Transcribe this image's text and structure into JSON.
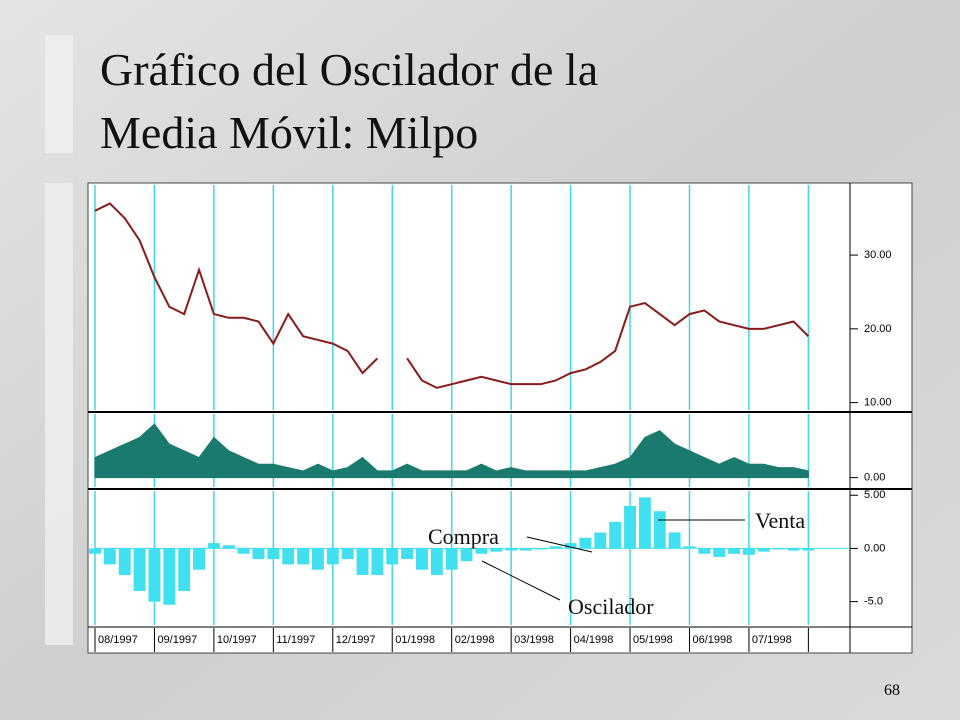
{
  "slide": {
    "title_lines": [
      "Gráfico del Oscilador de la",
      "Media Móvil: Milpo"
    ],
    "page_number": "68"
  },
  "chart_data": [
    {
      "type": "line",
      "color": "#8b1a1a",
      "grid": true,
      "x": [
        0,
        0.25,
        0.5,
        0.75,
        1,
        1.25,
        1.5,
        1.75,
        2,
        2.25,
        2.5,
        2.75,
        3,
        3.25,
        3.5,
        3.75,
        4,
        4.25,
        4.5,
        4.75,
        5,
        5.25,
        5.5,
        5.75,
        6,
        6.25,
        6.5,
        6.75,
        7,
        7.25,
        7.5,
        7.75,
        8,
        8.25,
        8.5,
        8.75,
        9,
        9.25,
        9.5,
        9.75,
        10,
        10.25,
        10.5,
        10.75,
        11,
        11.25,
        11.5,
        11.75,
        12
      ],
      "values": [
        36,
        37,
        35,
        32,
        27,
        23,
        22,
        28,
        22,
        21.5,
        21.5,
        21,
        18,
        22,
        19,
        18.5,
        18,
        17,
        14,
        16,
        null,
        16,
        13,
        12,
        12.5,
        13,
        13.5,
        13,
        12.5,
        12.5,
        12.5,
        13,
        14,
        14.5,
        15.5,
        17,
        23,
        23.5,
        22,
        20.5,
        22,
        22.5,
        21,
        20.5,
        20,
        20,
        20.5,
        21,
        19
      ],
      "xlim": [
        0,
        12.7
      ],
      "xticks": [
        0,
        1,
        2,
        3,
        4,
        5,
        6,
        7,
        8,
        9,
        10,
        11,
        12
      ],
      "ylim": [
        9,
        39.5
      ],
      "yticks": [
        {
          "value": 10,
          "label": "10.00"
        },
        {
          "value": 20,
          "label": "20.00"
        },
        {
          "value": 30,
          "label": "30.00"
        }
      ]
    },
    {
      "type": "area",
      "color": "#1a7a6e",
      "grid": true,
      "x": [
        0,
        0.25,
        0.5,
        0.75,
        1,
        1.25,
        1.5,
        1.75,
        2,
        2.25,
        2.5,
        2.75,
        3,
        3.25,
        3.5,
        3.75,
        4,
        4.25,
        4.5,
        4.75,
        5,
        5.25,
        5.5,
        5.75,
        6,
        6.25,
        6.5,
        6.75,
        7,
        7.25,
        7.5,
        7.75,
        8,
        8.25,
        8.5,
        8.75,
        9,
        9.25,
        9.5,
        9.75,
        10,
        10.25,
        10.5,
        10.75,
        11,
        11.25,
        11.5,
        11.75,
        12
      ],
      "values": [
        3,
        4,
        5,
        6,
        8,
        5,
        4,
        3,
        6,
        4,
        3,
        2,
        2,
        1.5,
        1,
        2,
        1,
        1.5,
        3,
        1,
        1,
        2,
        1,
        1,
        1,
        1,
        2,
        1,
        1.5,
        1,
        1,
        1,
        1,
        1,
        1.5,
        2,
        3,
        6,
        7,
        5,
        4,
        3,
        2,
        3,
        2,
        2,
        1.5,
        1.5,
        1
      ],
      "xlim": [
        0,
        12.7
      ],
      "xticks": [
        0,
        1,
        2,
        3,
        4,
        5,
        6,
        7,
        8,
        9,
        10,
        11,
        12
      ],
      "ylim": [
        -1.4,
        9.5
      ],
      "yticks": [
        {
          "value": 0,
          "label": "0.00"
        }
      ]
    },
    {
      "type": "bar",
      "color": "#40e0f0",
      "grid": true,
      "x": [
        0,
        0.25,
        0.5,
        0.75,
        1,
        1.25,
        1.5,
        1.75,
        2,
        2.25,
        2.5,
        2.75,
        3,
        3.25,
        3.5,
        3.75,
        4,
        4.25,
        4.5,
        4.75,
        5,
        5.25,
        5.5,
        5.75,
        6,
        6.25,
        6.5,
        6.75,
        7,
        7.25,
        7.5,
        7.75,
        8,
        8.25,
        8.5,
        8.75,
        9,
        9.25,
        9.5,
        9.75,
        10,
        10.25,
        10.5,
        10.75,
        11,
        11.25,
        11.5,
        11.75,
        12
      ],
      "values": [
        -0.5,
        -1.5,
        -2.5,
        -4,
        -5,
        -5.3,
        -4,
        -2,
        0.5,
        0.3,
        -0.5,
        -1,
        -1,
        -1.5,
        -1.5,
        -2,
        -1.5,
        -1,
        -2.5,
        -2.5,
        -1.5,
        -1,
        -2,
        -2.5,
        -2,
        -1.2,
        -0.5,
        -0.3,
        -0.2,
        -0.2,
        -0.1,
        0.2,
        0.5,
        1,
        1.5,
        2.5,
        4,
        4.8,
        3.5,
        1.5,
        0.2,
        -0.5,
        -0.8,
        -0.5,
        -0.6,
        -0.3,
        -0.1,
        -0.2,
        -0.2
      ],
      "xlim": [
        0,
        12.7
      ],
      "xticks": [
        {
          "value": 0,
          "label": "08/1997"
        },
        {
          "value": 1,
          "label": "09/1997"
        },
        {
          "value": 2,
          "label": "10/1997"
        },
        {
          "value": 3,
          "label": "11/1997"
        },
        {
          "value": 4,
          "label": "12/1997"
        },
        {
          "value": 5,
          "label": "01/1998"
        },
        {
          "value": 6,
          "label": "02/1998"
        },
        {
          "value": 7,
          "label": "03/1998"
        },
        {
          "value": 8,
          "label": "04/1998"
        },
        {
          "value": 9,
          "label": "05/1998"
        },
        {
          "value": 10,
          "label": "06/1998"
        },
        {
          "value": 11,
          "label": "07/1998"
        },
        12
      ],
      "ylim": [
        -7.2,
        5.4
      ],
      "yticks": [
        {
          "value": 5,
          "label": "5.00"
        },
        {
          "value": 0,
          "label": "0.00"
        },
        {
          "value": -5,
          "label": "-5.0"
        }
      ],
      "annotations": [
        "Compra",
        "Venta",
        "Oscilador"
      ]
    }
  ]
}
